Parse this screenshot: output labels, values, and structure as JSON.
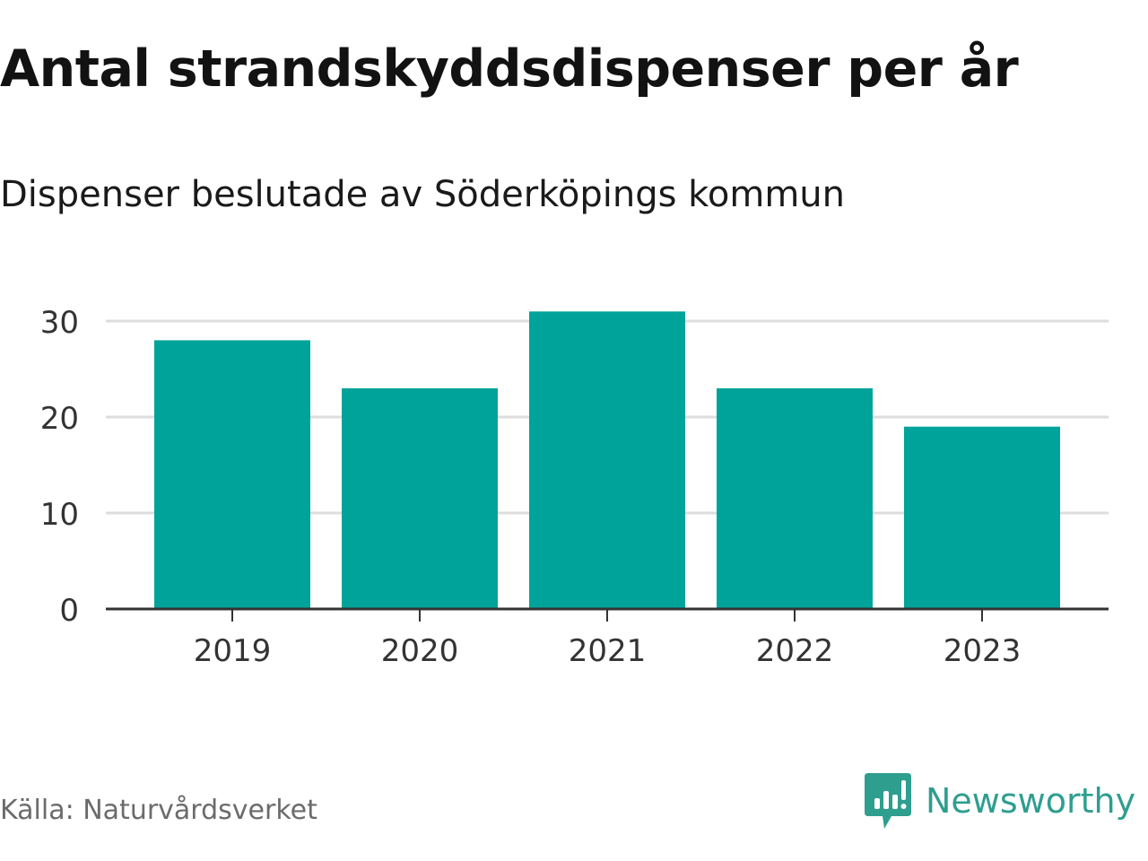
{
  "title": "Antal strandskyddsdispenser per år",
  "subtitle": "Dispenser beslutade av Söderköpings kommun",
  "source": "Källa: Naturvårdsverket",
  "brand": {
    "name": "Newsworthy",
    "color": "#2e9e8f",
    "icon": "newsworthy-logo-icon"
  },
  "colors": {
    "bar": "#00a39a",
    "grid": "#dddddd",
    "axis": "#333333",
    "tick_label": "#333333"
  },
  "chart_data": {
    "type": "bar",
    "title": "Antal strandskyddsdispenser per år",
    "subtitle": "Dispenser beslutade av Söderköpings kommun",
    "categories": [
      "2019",
      "2020",
      "2021",
      "2022",
      "2023"
    ],
    "values": [
      28,
      23,
      31,
      23,
      19
    ],
    "xlabel": "",
    "ylabel": "",
    "ylim": [
      0,
      30
    ],
    "yticks": [
      0,
      10,
      20,
      30
    ],
    "grid": true,
    "legend": "none"
  }
}
